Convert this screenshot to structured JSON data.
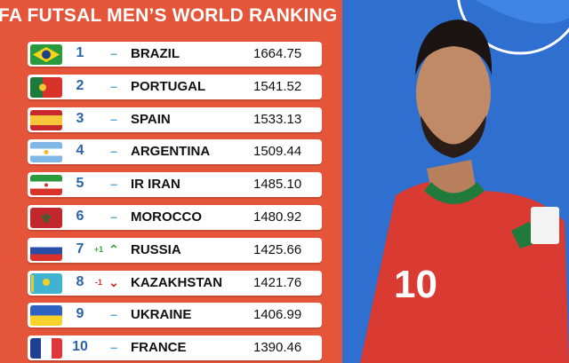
{
  "title": "FA FUTSAL MEN’S WORLD RANKING",
  "colors": {
    "background": "#e4553a",
    "rank": "#2d63a8",
    "up": "#3aa844",
    "down": "#d32f2f",
    "same": "#5aa8d8"
  },
  "rankings": [
    {
      "rank": "1",
      "change": "",
      "movement": "same",
      "symbol": "–",
      "country": "BRAZIL",
      "points": "1664.75",
      "flag": "brazil"
    },
    {
      "rank": "2",
      "change": "",
      "movement": "same",
      "symbol": "–",
      "country": "PORTUGAL",
      "points": "1541.52",
      "flag": "portugal"
    },
    {
      "rank": "3",
      "change": "",
      "movement": "same",
      "symbol": "–",
      "country": "SPAIN",
      "points": "1533.13",
      "flag": "spain"
    },
    {
      "rank": "4",
      "change": "",
      "movement": "same",
      "symbol": "–",
      "country": "ARGENTINA",
      "points": "1509.44",
      "flag": "argentina"
    },
    {
      "rank": "5",
      "change": "",
      "movement": "same",
      "symbol": "–",
      "country": "IR IRAN",
      "points": "1485.10",
      "flag": "iran"
    },
    {
      "rank": "6",
      "change": "",
      "movement": "same",
      "symbol": "–",
      "country": "MOROCCO",
      "points": "1480.92",
      "flag": "morocco"
    },
    {
      "rank": "7",
      "change": "+1",
      "movement": "up",
      "symbol": "⌃",
      "country": "RUSSIA",
      "points": "1425.66",
      "flag": "russia"
    },
    {
      "rank": "8",
      "change": "-1",
      "movement": "down",
      "symbol": "⌄",
      "country": "KAZAKHSTAN",
      "points": "1421.76",
      "flag": "kazakhstan"
    },
    {
      "rank": "9",
      "change": "",
      "movement": "same",
      "symbol": "–",
      "country": "UKRAINE",
      "points": "1406.99",
      "flag": "ukraine"
    },
    {
      "rank": "10",
      "change": "",
      "movement": "same",
      "symbol": "–",
      "country": "FRANCE",
      "points": "1390.46",
      "flag": "france"
    }
  ],
  "player": {
    "shirt_number": "10"
  }
}
